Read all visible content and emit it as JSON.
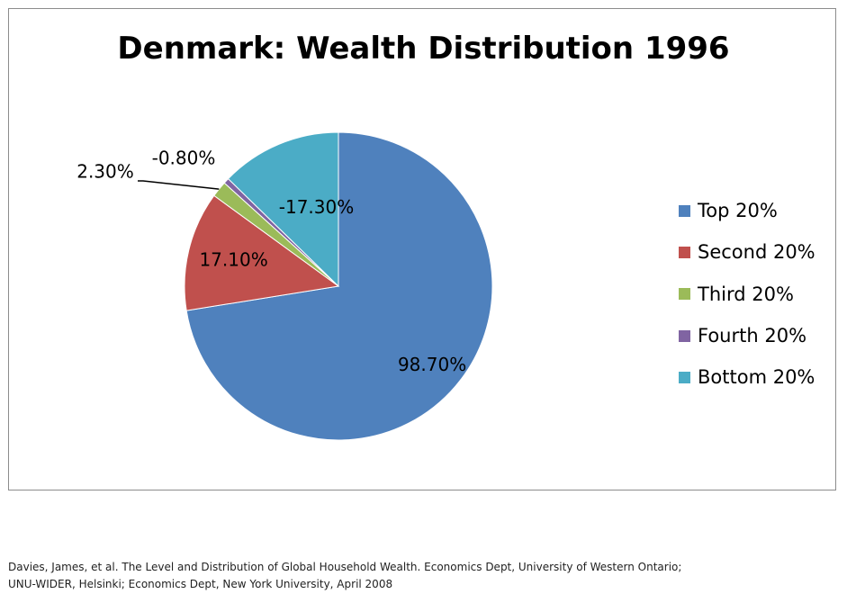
{
  "chart_data": {
    "type": "pie",
    "title": "Denmark: Wealth Distribution 1996",
    "slices": [
      {
        "name": "Top 20%",
        "label": "98.70%",
        "value": 98.7,
        "color": "#4f81bd"
      },
      {
        "name": "Second 20%",
        "label": "17.10%",
        "value": 17.1,
        "color": "#c0504d"
      },
      {
        "name": "Third 20%",
        "label": "2.30%",
        "value": 2.3,
        "color": "#9bbb59"
      },
      {
        "name": "Fourth 20%",
        "label": "-0.80%",
        "value": -0.8,
        "color": "#8064a2"
      },
      {
        "name": "Bottom 20%",
        "label": "-17.30%",
        "value": -17.3,
        "color": "#4bacc6"
      }
    ],
    "legend_position": "right"
  },
  "source": {
    "line1": "Davies, James, et al. The Level and Distribution of Global Household Wealth. Economics Dept, University of Western Ontario;",
    "line2": "UNU-WIDER, Helsinki; Economics Dept, New York University, April 2008"
  }
}
